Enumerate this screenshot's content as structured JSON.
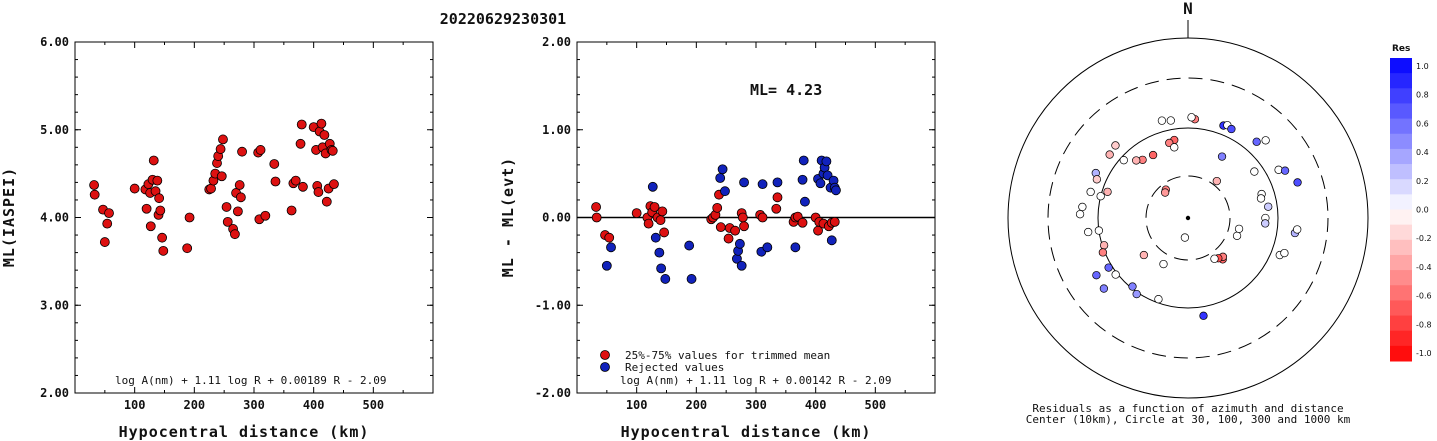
{
  "title": "20220629230301",
  "colors": {
    "accepted": "#dd1111",
    "rejected": "#1122bb",
    "axis": "#000000"
  },
  "chart_data": [
    {
      "type": "scatter",
      "id": "left",
      "xlabel": "Hypocentral distance (km)",
      "ylabel": "ML(IASPEI)",
      "xlim": [
        0,
        600
      ],
      "ylim": [
        2.0,
        6.0
      ],
      "x_ticks": [
        "100",
        "200",
        "300",
        "400",
        "500"
      ],
      "y_ticks": [
        "2.00",
        "3.00",
        "4.00",
        "5.00",
        "6.00"
      ],
      "formula": "log A(nm) + 1.11 log R + 0.00189 R - 2.09",
      "series": [
        {
          "points": [
            [
              32,
              4.37
            ],
            [
              33,
              4.26
            ],
            [
              47,
              4.09
            ],
            [
              50,
              3.72
            ],
            [
              54,
              3.93
            ],
            [
              57,
              4.05
            ],
            [
              100,
              4.33
            ],
            [
              118,
              4.32
            ],
            [
              120,
              4.1
            ],
            [
              123,
              4.38
            ],
            [
              126,
              4.28
            ],
            [
              127,
              3.9
            ],
            [
              130,
              4.43
            ],
            [
              132,
              4.65
            ],
            [
              135,
              4.3
            ],
            [
              138,
              4.42
            ],
            [
              140,
              4.03
            ],
            [
              141,
              4.22
            ],
            [
              143,
              4.08
            ],
            [
              146,
              3.77
            ],
            [
              148,
              3.62
            ],
            [
              188,
              3.65
            ],
            [
              192,
              4.0
            ],
            [
              225,
              4.32
            ],
            [
              228,
              4.33
            ],
            [
              232,
              4.42
            ],
            [
              235,
              4.5
            ],
            [
              238,
              4.62
            ],
            [
              240,
              4.7
            ],
            [
              244,
              4.78
            ],
            [
              246,
              4.47
            ],
            [
              248,
              4.89
            ],
            [
              254,
              4.12
            ],
            [
              256,
              3.95
            ],
            [
              265,
              3.87
            ],
            [
              268,
              3.81
            ],
            [
              270,
              4.28
            ],
            [
              273,
              4.07
            ],
            [
              276,
              4.37
            ],
            [
              278,
              4.23
            ],
            [
              280,
              4.75
            ],
            [
              307,
              4.74
            ],
            [
              309,
              3.98
            ],
            [
              311,
              4.77
            ],
            [
              319,
              4.02
            ],
            [
              334,
              4.61
            ],
            [
              336,
              4.41
            ],
            [
              363,
              4.08
            ],
            [
              366,
              4.39
            ],
            [
              370,
              4.42
            ],
            [
              378,
              4.84
            ],
            [
              380,
              5.06
            ],
            [
              382,
              4.35
            ],
            [
              400,
              5.03
            ],
            [
              404,
              4.77
            ],
            [
              406,
              4.36
            ],
            [
              408,
              4.29
            ],
            [
              410,
              4.98
            ],
            [
              413,
              5.07
            ],
            [
              415,
              4.8
            ],
            [
              418,
              4.94
            ],
            [
              420,
              4.73
            ],
            [
              422,
              4.18
            ],
            [
              425,
              4.33
            ],
            [
              427,
              4.84
            ],
            [
              430,
              4.77
            ],
            [
              432,
              4.76
            ],
            [
              434,
              4.38
            ]
          ]
        }
      ]
    },
    {
      "type": "scatter",
      "id": "middle",
      "xlabel": "Hypocentral distance (km)",
      "ylabel": "ML - ML(evt)",
      "xlim": [
        0,
        600
      ],
      "ylim": [
        -2.0,
        2.0
      ],
      "x_ticks": [
        "100",
        "200",
        "300",
        "400",
        "500"
      ],
      "y_ticks": [
        "-2.00",
        "-1.00",
        "0.00",
        "1.00",
        "2.00"
      ],
      "annotation": "ML= 4.23",
      "formula": "log A(nm) + 1.11 log R + 0.00142 R - 2.09",
      "series": [
        {
          "name": "25%-75% values for trimmed mean",
          "points": [
            [
              32,
              0.12
            ],
            [
              33,
              0.0
            ],
            [
              47,
              -0.2
            ],
            [
              54,
              -0.23
            ],
            [
              100,
              0.05
            ],
            [
              118,
              0.0
            ],
            [
              120,
              -0.07
            ],
            [
              123,
              0.13
            ],
            [
              126,
              0.06
            ],
            [
              130,
              0.12
            ],
            [
              135,
              0.0
            ],
            [
              140,
              -0.03
            ],
            [
              143,
              0.07
            ],
            [
              146,
              -0.17
            ],
            [
              225,
              -0.02
            ],
            [
              228,
              0.0
            ],
            [
              232,
              0.03
            ],
            [
              235,
              0.11
            ],
            [
              238,
              0.26
            ],
            [
              241,
              -0.11
            ],
            [
              254,
              -0.24
            ],
            [
              256,
              -0.12
            ],
            [
              265,
              -0.15
            ],
            [
              276,
              0.05
            ],
            [
              278,
              0.0
            ],
            [
              280,
              -0.1
            ],
            [
              307,
              0.03
            ],
            [
              311,
              0.0
            ],
            [
              334,
              0.1
            ],
            [
              336,
              0.23
            ],
            [
              363,
              -0.05
            ],
            [
              366,
              0.0
            ],
            [
              370,
              0.01
            ],
            [
              378,
              -0.06
            ],
            [
              400,
              0.0
            ],
            [
              404,
              -0.15
            ],
            [
              406,
              -0.05
            ],
            [
              413,
              -0.07
            ],
            [
              422,
              -0.1
            ],
            [
              427,
              -0.06
            ],
            [
              432,
              -0.05
            ]
          ]
        },
        {
          "name": "Rejected values",
          "points": [
            [
              50,
              -0.55
            ],
            [
              57,
              -0.34
            ],
            [
              127,
              0.35
            ],
            [
              132,
              -0.23
            ],
            [
              138,
              -0.4
            ],
            [
              141,
              -0.58
            ],
            [
              148,
              -0.7
            ],
            [
              188,
              -0.32
            ],
            [
              192,
              -0.7
            ],
            [
              240,
              0.45
            ],
            [
              244,
              0.55
            ],
            [
              248,
              0.3
            ],
            [
              268,
              -0.47
            ],
            [
              270,
              -0.38
            ],
            [
              273,
              -0.3
            ],
            [
              276,
              -0.55
            ],
            [
              280,
              0.4
            ],
            [
              309,
              -0.39
            ],
            [
              311,
              0.38
            ],
            [
              319,
              -0.34
            ],
            [
              336,
              0.4
            ],
            [
              366,
              -0.34
            ],
            [
              378,
              0.43
            ],
            [
              380,
              0.65
            ],
            [
              382,
              0.18
            ],
            [
              404,
              0.44
            ],
            [
              408,
              0.39
            ],
            [
              410,
              0.65
            ],
            [
              413,
              0.5
            ],
            [
              415,
              0.57
            ],
            [
              418,
              0.64
            ],
            [
              420,
              0.48
            ],
            [
              425,
              0.34
            ],
            [
              427,
              -0.26
            ],
            [
              430,
              0.42
            ],
            [
              432,
              0.34
            ],
            [
              434,
              0.31
            ]
          ]
        }
      ]
    },
    {
      "type": "scatter",
      "id": "polar",
      "north_label": "N",
      "caption_line1": "Residuals as a function of azimuth and distance",
      "caption_line2": "Center (10km), Circle at 30, 100, 300 and 1000 km",
      "colorbar_title": "Res",
      "colorbar_ticks": [
        "1.0",
        "0.8",
        "0.6",
        "0.4",
        "0.2",
        "0.0",
        "-0.2",
        "-0.4",
        "-0.6",
        "-0.8",
        "-1.0"
      ],
      "points_azimuth_ringfraction_residual": [
        [
          189,
          0.11,
          0.0
        ],
        [
          322,
          0.2,
          -0.5
        ],
        [
          318,
          0.19,
          -0.4
        ],
        [
          208,
          0.29,
          0.0
        ],
        [
          38,
          0.26,
          -0.3
        ],
        [
          110,
          0.29,
          0.0
        ],
        [
          102,
          0.29,
          0.0
        ],
        [
          140,
          0.3,
          -0.6
        ],
        [
          138,
          0.29,
          -0.5
        ],
        [
          143,
          0.28,
          -0.7
        ],
        [
          147,
          0.27,
          0.0
        ],
        [
          230,
          0.32,
          -0.3
        ],
        [
          350,
          0.44,
          -0.6
        ],
        [
          346,
          0.43,
          -0.5
        ],
        [
          29,
          0.39,
          0.5
        ],
        [
          349,
          0.4,
          0.0
        ],
        [
          72,
          0.43,
          0.0
        ],
        [
          75,
          0.42,
          0.0
        ],
        [
          55,
          0.45,
          0.0
        ],
        [
          331,
          0.4,
          -0.6
        ],
        [
          322,
          0.41,
          -0.5
        ],
        [
          318,
          0.43,
          -0.3
        ],
        [
          312,
          0.48,
          0.0
        ],
        [
          82,
          0.45,
          0.2
        ],
        [
          90,
          0.43,
          0.0
        ],
        [
          94,
          0.43,
          0.2
        ],
        [
          288,
          0.47,
          -0.3
        ],
        [
          284,
          0.5,
          0.0
        ],
        [
          262,
          0.5,
          0.0
        ],
        [
          252,
          0.49,
          -0.3
        ],
        [
          248,
          0.51,
          -0.5
        ],
        [
          238,
          0.52,
          0.6
        ],
        [
          232,
          0.51,
          0.0
        ],
        [
          219,
          0.49,
          0.5
        ],
        [
          214,
          0.51,
          0.4
        ],
        [
          200,
          0.48,
          0.0
        ],
        [
          4,
          0.55,
          -0.5
        ],
        [
          2,
          0.56,
          0.0
        ],
        [
          21,
          0.55,
          0.8
        ],
        [
          23,
          0.56,
          0.0
        ],
        [
          26,
          0.55,
          0.7
        ],
        [
          350,
          0.55,
          0.0
        ],
        [
          345,
          0.56,
          0.0
        ],
        [
          315,
          0.57,
          -0.2
        ],
        [
          309,
          0.56,
          -0.3
        ],
        [
          296,
          0.57,
          0.3
        ],
        [
          293,
          0.55,
          -0.2
        ],
        [
          285,
          0.56,
          0.0
        ],
        [
          276,
          0.59,
          0.0
        ],
        [
          272,
          0.6,
          0.0
        ],
        [
          262,
          0.56,
          0.0
        ],
        [
          42,
          0.57,
          0.6
        ],
        [
          45,
          0.61,
          0.0
        ],
        [
          62,
          0.57,
          0.0
        ],
        [
          64,
          0.6,
          0.6
        ],
        [
          72,
          0.64,
          0.7
        ],
        [
          98,
          0.6,
          0.3
        ],
        [
          96,
          0.61,
          0.0
        ],
        [
          112,
          0.55,
          0.0
        ],
        [
          110,
          0.57,
          0.0
        ],
        [
          171,
          0.55,
          0.8
        ],
        [
          238,
          0.6,
          0.6
        ],
        [
          230,
          0.61,
          0.5
        ]
      ]
    }
  ]
}
